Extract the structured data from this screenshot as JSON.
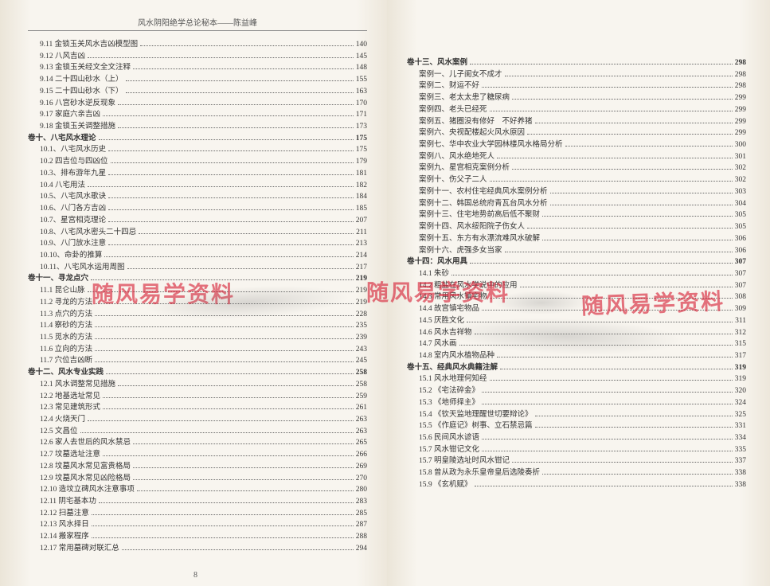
{
  "header_left": "风水阴阳绝学总论秘本——陈益峰",
  "watermark_text": "随风易学资料",
  "left_page_num": "8",
  "left": [
    {
      "t": "9.11 金锁玉关风水吉凶模型图",
      "p": "140",
      "i": 1
    },
    {
      "t": "9.12 八风吉凶",
      "p": "145",
      "i": 1
    },
    {
      "t": "9.13 金锁玉关经文全文注释",
      "p": "148",
      "i": 1
    },
    {
      "t": "9.14 二十四山砂水（上）",
      "p": "155",
      "i": 1
    },
    {
      "t": "9.15 二十四山砂水（下）",
      "p": "163",
      "i": 1
    },
    {
      "t": "9.16 八宫砂水逆反现象",
      "p": "170",
      "i": 1
    },
    {
      "t": "9.17 家庭六亲吉凶",
      "p": "171",
      "i": 1
    },
    {
      "t": "9.18 金锁玉关调整措施",
      "p": "173",
      "i": 1
    },
    {
      "t": "卷十、八宅风水理论",
      "p": "175",
      "i": 0
    },
    {
      "t": "10.1、八宅风水历史",
      "p": "175",
      "i": 1
    },
    {
      "t": "10.2 四吉位与四凶位",
      "p": "179",
      "i": 1
    },
    {
      "t": "10.3、排布游年九星",
      "p": "181",
      "i": 1
    },
    {
      "t": "10.4 八宅用法",
      "p": "182",
      "i": 1
    },
    {
      "t": "10.5、八宅风水歌诀",
      "p": "184",
      "i": 1
    },
    {
      "t": "10.6、八门各方吉凶",
      "p": "185",
      "i": 1
    },
    {
      "t": "10.7、星宫相克理论",
      "p": "207",
      "i": 1
    },
    {
      "t": "10.8、八宅风水密头二十四忌",
      "p": "211",
      "i": 1
    },
    {
      "t": "10.9、八门放水注意",
      "p": "213",
      "i": 1
    },
    {
      "t": "10.10、命卦的推算",
      "p": "214",
      "i": 1
    },
    {
      "t": "10.11、八宅风水运用周图",
      "p": "217",
      "i": 1
    },
    {
      "t": "卷十一、寻龙点穴",
      "p": "219",
      "i": 0
    },
    {
      "t": "11.1 昆仑山脉",
      "p": "219",
      "i": 1
    },
    {
      "t": "11.2 寻龙的方法",
      "p": "219",
      "i": 1
    },
    {
      "t": "11.3 点穴的方法",
      "p": "228",
      "i": 1
    },
    {
      "t": "11.4 察砂的方法",
      "p": "235",
      "i": 1
    },
    {
      "t": "11.5 觅水的方法",
      "p": "239",
      "i": 1
    },
    {
      "t": "11.6 立向的方法",
      "p": "243",
      "i": 1
    },
    {
      "t": "11.7 穴位吉凶断",
      "p": "245",
      "i": 1
    },
    {
      "t": "卷十二、风水专业实践",
      "p": "258",
      "i": 0
    },
    {
      "t": "12.1 风水调整常见措施",
      "p": "258",
      "i": 1
    },
    {
      "t": "12.2 地基选址常见",
      "p": "259",
      "i": 1
    },
    {
      "t": "12.3 常见建筑形式",
      "p": "261",
      "i": 1
    },
    {
      "t": "12.4 火烧天门",
      "p": "263",
      "i": 1
    },
    {
      "t": "12.5 文昌位",
      "p": "263",
      "i": 1
    },
    {
      "t": "12.6 家人去世后的风水禁忌",
      "p": "265",
      "i": 1
    },
    {
      "t": "12.7 坟墓选址注意",
      "p": "266",
      "i": 1
    },
    {
      "t": "12.8 坟墓风水常见富贵格局",
      "p": "269",
      "i": 1
    },
    {
      "t": "12.9 坟墓风水常见凶险格局",
      "p": "270",
      "i": 1
    },
    {
      "t": "12.10 造坟立碑风水注意事项",
      "p": "280",
      "i": 1
    },
    {
      "t": "12.11 阴宅基本功",
      "p": "283",
      "i": 1
    },
    {
      "t": "12.12 扫墓注意",
      "p": "285",
      "i": 1
    },
    {
      "t": "12.13  风水择日",
      "p": "287",
      "i": 1
    },
    {
      "t": "12.14  搬家程序",
      "p": "288",
      "i": 1
    },
    {
      "t": "12.17 常用墓碑对联汇总",
      "p": "294",
      "i": 1
    }
  ],
  "right": [
    {
      "t": "卷十三、风水案例",
      "p": "298",
      "i": 0
    },
    {
      "t": "案例一、儿子闺女不成才",
      "p": "298",
      "i": 1
    },
    {
      "t": "案例二、财运不好",
      "p": "298",
      "i": 1
    },
    {
      "t": "案例三、老太太患了糖尿病",
      "p": "299",
      "i": 1
    },
    {
      "t": "案例四、老头已经死",
      "p": "299",
      "i": 1
    },
    {
      "t": "案例五、猪圈没有修好　不好养猪",
      "p": "299",
      "i": 1
    },
    {
      "t": "案例六、央视配楼起火风水原因",
      "p": "299",
      "i": 1
    },
    {
      "t": "案例七、华中农业大学园林楼风水格局分析",
      "p": "300",
      "i": 1
    },
    {
      "t": "案例八、风水绝地死人",
      "p": "301",
      "i": 1
    },
    {
      "t": "案例九、星宫相克案例分析",
      "p": "302",
      "i": 1
    },
    {
      "t": "案例十、伤父子二人",
      "p": "302",
      "i": 1
    },
    {
      "t": "案例十一、农村住宅经典风水案例分析",
      "p": "303",
      "i": 1
    },
    {
      "t": "案例十二、韩国总统府青瓦台风水分析",
      "p": "304",
      "i": 1
    },
    {
      "t": "案例十三、住宅地势前高后低不聚财",
      "p": "305",
      "i": 1
    },
    {
      "t": "案例十四、风水绥阳院子伤女人",
      "p": "305",
      "i": 1
    },
    {
      "t": "案例十五、东方有水漂流难风水破解",
      "p": "306",
      "i": 1
    },
    {
      "t": "案例十六、虎强多女当家",
      "p": "306",
      "i": 1
    },
    {
      "t": "卷十四：风水用具",
      "p": "307",
      "i": 0
    },
    {
      "t": "14.1 朱砂",
      "p": "307",
      "i": 1
    },
    {
      "t": "14.2 粗盐在风水学说中的应用",
      "p": "307",
      "i": 1
    },
    {
      "t": "14.3 常用风水镇宅物",
      "p": "308",
      "i": 1
    },
    {
      "t": "14.4 故宫镇宅物品",
      "p": "309",
      "i": 1
    },
    {
      "t": "14.5 厌胜文化",
      "p": "311",
      "i": 1
    },
    {
      "t": "14.6 风水吉祥物",
      "p": "312",
      "i": 1
    },
    {
      "t": "14.7 风水画",
      "p": "315",
      "i": 1
    },
    {
      "t": "14.8 室内风水植物品种",
      "p": "317",
      "i": 1
    },
    {
      "t": "卷十五、经典风水典籍注解",
      "p": "319",
      "i": 0
    },
    {
      "t": "15.1 风水地理何知经",
      "p": "319",
      "i": 1
    },
    {
      "t": "15.2 《宅法碎金》",
      "p": "320",
      "i": 1
    },
    {
      "t": "15.3 《地师择主》",
      "p": "324",
      "i": 1
    },
    {
      "t": "15.4 《钦天监地理醒世切要辩论》",
      "p": "325",
      "i": 1
    },
    {
      "t": "15.5 《作庭记》树事、立石禁忌篇",
      "p": "331",
      "i": 1
    },
    {
      "t": "15.6 民间风水谚语",
      "p": "334",
      "i": 1
    },
    {
      "t": "15.7 风水钳记文化",
      "p": "335",
      "i": 1
    },
    {
      "t": "15.7 明皇陵选址时风水钳记",
      "p": "337",
      "i": 1
    },
    {
      "t": "15.8 曾从政为永乐皇帝皇后选陵奏折",
      "p": "338",
      "i": 1
    },
    {
      "t": "15.9 《玄机赋》",
      "p": "338",
      "i": 1
    }
  ]
}
